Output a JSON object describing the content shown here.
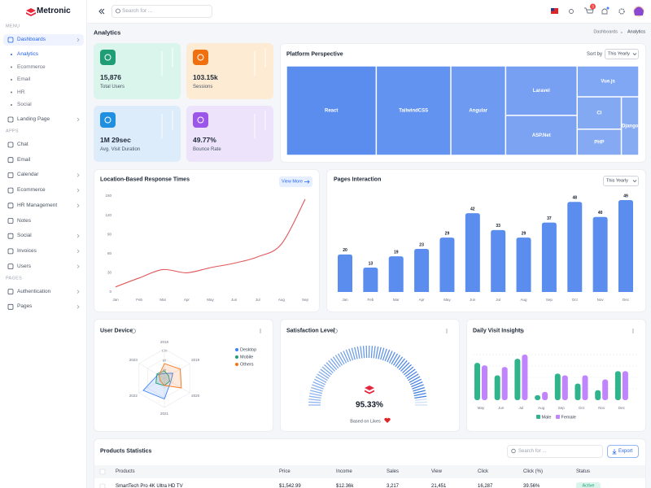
{
  "sidebar": {
    "logo": "Metronic",
    "sections": [
      {
        "label": "MENU",
        "items": [
          {
            "label": "Dashboards",
            "expandable": true,
            "active": true,
            "sub": [
              {
                "label": "Analytics",
                "active": true
              },
              {
                "label": "Ecommerce"
              },
              {
                "label": "Email"
              },
              {
                "label": "HR"
              },
              {
                "label": "Social"
              }
            ]
          },
          {
            "label": "Landing Page",
            "expandable": true
          }
        ]
      },
      {
        "label": "APPS",
        "items": [
          {
            "label": "Chat"
          },
          {
            "label": "Email"
          },
          {
            "label": "Calendar",
            "expandable": true
          },
          {
            "label": "Ecommerce",
            "expandable": true
          },
          {
            "label": "HR Management",
            "expandable": true
          },
          {
            "label": "Notes"
          },
          {
            "label": "Social",
            "expandable": true
          },
          {
            "label": "Invoices",
            "expandable": true
          },
          {
            "label": "Users",
            "expandable": true
          }
        ]
      },
      {
        "label": "PAGES",
        "items": [
          {
            "label": "Authentication",
            "expandable": true
          },
          {
            "label": "Pages",
            "expandable": true
          }
        ]
      }
    ]
  },
  "header": {
    "search_placeholder": "Search for ...",
    "cart_badge": "3"
  },
  "page": {
    "title": "Analytics",
    "breadcrumb": [
      "Dashboards",
      "Analytics"
    ]
  },
  "stats": [
    {
      "value": "15,876",
      "label": "Total Users",
      "color": "#1f9d74",
      "background": "#d9f5ec"
    },
    {
      "value": "103.15k",
      "label": "Sessions",
      "color": "#f0700f",
      "background": "#fdebd4"
    },
    {
      "value": "1M 29sec",
      "label": "Avg. Visit Duration",
      "color": "#1f8fe0",
      "background": "#dcecfb"
    },
    {
      "value": "49.77%",
      "label": "Bounce Rate",
      "color": "#9b55e8",
      "background": "#ede4fb"
    }
  ],
  "platform": {
    "title": "Platform Perspective",
    "sort_label": "Sort by",
    "sort_value": "This Yearly",
    "chart": {
      "type": "treemap",
      "color": "#5b8def",
      "labels": [
        "React",
        "TailwindCSS",
        "Angular",
        "Laravel",
        "ASP.Net",
        "Vue.js",
        "CI",
        "PHP",
        "Django"
      ],
      "values": [
        118,
        98,
        72,
        52,
        42,
        28,
        21,
        17,
        15
      ]
    }
  },
  "response": {
    "title": "Location-Based Response Times",
    "button": "View More",
    "chart": {
      "type": "line",
      "color": "#e0575b",
      "categories": [
        "Jan",
        "Feb",
        "Mar",
        "Apr",
        "May",
        "Jun",
        "Jul",
        "Aug",
        "Sep"
      ],
      "values": [
        8,
        22,
        35,
        30,
        38,
        45,
        55,
        75,
        145
      ],
      "ylim": [
        0,
        150
      ],
      "yticks": [
        0,
        30,
        60,
        90,
        120,
        150
      ]
    }
  },
  "pages": {
    "title": "Pages Interaction",
    "select": "This Yearly",
    "chart": {
      "type": "bar",
      "color": "#5b8def",
      "categories": [
        "Jan",
        "Feb",
        "Mar",
        "Apr",
        "May",
        "Jun",
        "Jul",
        "Aug",
        "Sep",
        "Oct",
        "Nov",
        "Dec"
      ],
      "values": [
        20,
        13,
        19,
        23,
        29,
        42,
        33,
        29,
        37,
        48,
        40,
        49
      ]
    }
  },
  "device": {
    "title": "User Device",
    "chart": {
      "type": "radar",
      "categories": [
        "2018",
        "2019",
        "2020",
        "2021",
        "2022",
        "2023"
      ],
      "rlim": [
        0,
        120
      ],
      "rticks": [
        40,
        80,
        120
      ],
      "legend": "right",
      "series": [
        {
          "name": "Desktop",
          "color": "#3b82f6",
          "values": [
            20,
            40,
            30,
            85,
            100,
            30
          ]
        },
        {
          "name": "Mobile",
          "color": "#1f9d74",
          "values": [
            30,
            20,
            25,
            30,
            40,
            35
          ]
        },
        {
          "name": "Others",
          "color": "#f97316",
          "values": [
            60,
            75,
            80,
            30,
            20,
            25
          ]
        }
      ]
    }
  },
  "satisfaction": {
    "title": "Satisfaction Level",
    "chart": {
      "type": "gauge",
      "value": 95.33,
      "value_label": "95.33%",
      "range": [
        0,
        100
      ],
      "color": "#3b7ae0",
      "caption": "Based on Likes"
    }
  },
  "visits": {
    "title": "Daily Visit Insights",
    "chart": {
      "type": "grouped-bar",
      "categories": [
        "May",
        "Jun",
        "Jul",
        "Aug",
        "Sep",
        "Oct",
        "Nov",
        "Dec"
      ],
      "series": [
        {
          "name": "Male",
          "color": "#2fb48c",
          "values": [
            45,
            30,
            50,
            6,
            32,
            20,
            12,
            35
          ]
        },
        {
          "name": "Female",
          "color": "#c084fc",
          "values": [
            42,
            40,
            55,
            10,
            30,
            30,
            25,
            35
          ]
        }
      ]
    }
  },
  "products": {
    "title": "Products Statistics",
    "search_placeholder": "Search for ...",
    "button": "Export",
    "table": {
      "columns": [
        "Products",
        "Price",
        "Income",
        "Sales",
        "View",
        "Click",
        "Click (%)",
        "Status"
      ],
      "rows": [
        [
          "SmartTech Pro 4K Ultra HD TV",
          "$1,542.99",
          "$12.36k",
          "3,217",
          "21,451",
          "16,287",
          "39.56%",
          "Active"
        ]
      ]
    }
  }
}
